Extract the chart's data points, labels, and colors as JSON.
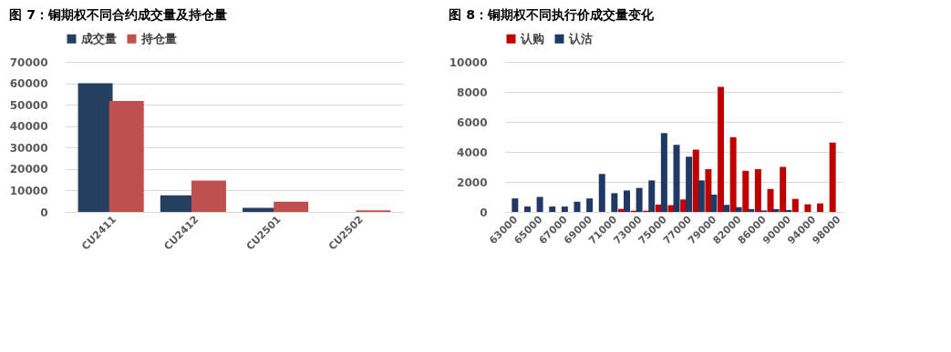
{
  "chart_data": [
    {
      "type": "bar",
      "title": "图 7：铜期权不同合约成交量及持仓量",
      "categories": [
        "CU2411",
        "CU2412",
        "CU2501",
        "CU2502"
      ],
      "series": [
        {
          "name": "成交量",
          "color": "#243f60",
          "values": [
            60000,
            7700,
            1900,
            0
          ]
        },
        {
          "name": "持仓量",
          "color": "#c0504d",
          "values": [
            51800,
            14600,
            4800,
            700
          ]
        }
      ],
      "ylim": [
        0,
        70000
      ],
      "yticks": [
        0,
        10000,
        20000,
        30000,
        40000,
        50000,
        60000,
        70000
      ],
      "grid": "y",
      "legend": "top"
    },
    {
      "type": "bar",
      "title": "图 8：铜期权不同执行价成交量变化",
      "categories": [
        "63000",
        null,
        "65000",
        null,
        "67000",
        null,
        "69000",
        null,
        "71000",
        null,
        "73000",
        null,
        "75000",
        null,
        "77000",
        null,
        "79000",
        null,
        "82000",
        null,
        "86000",
        null,
        "90000",
        null,
        "94000",
        null,
        "98000"
      ],
      "series": [
        {
          "name": "认购",
          "color": "#c00000",
          "values": [
            0,
            0,
            0,
            0,
            0,
            0,
            0,
            0,
            0,
            200,
            80,
            80,
            490,
            450,
            830,
            4150,
            2850,
            8340,
            4980,
            2740,
            2850,
            1530,
            3000,
            870,
            510,
            570,
            4620
          ]
        },
        {
          "name": "认沽",
          "color": "#1f3864",
          "values": [
            900,
            360,
            1000,
            360,
            360,
            680,
            900,
            2530,
            1250,
            1430,
            1600,
            2100,
            5250,
            4470,
            3680,
            2100,
            1150,
            470,
            320,
            190,
            100,
            190,
            130,
            null,
            0,
            null,
            0
          ]
        }
      ],
      "ylim": [
        0,
        10000
      ],
      "yticks": [
        0,
        2000,
        4000,
        6000,
        8000,
        10000
      ],
      "grid": "y",
      "legend": "top"
    }
  ]
}
